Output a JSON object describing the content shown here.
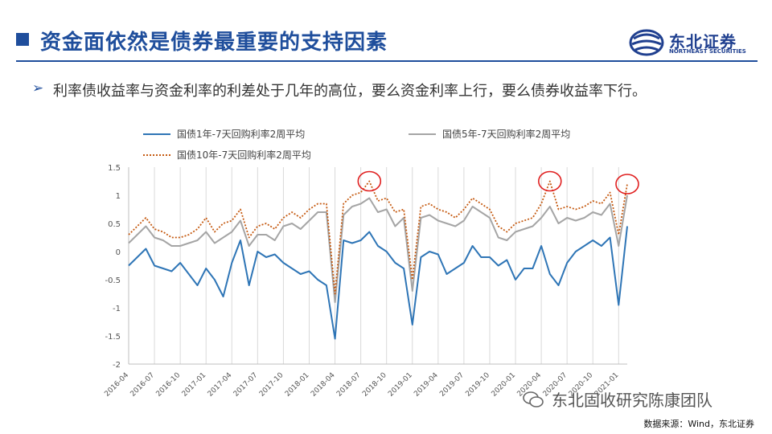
{
  "header": {
    "title": "资金面依然是债券最重要的支持因素",
    "logo_cn": "东北证券",
    "logo_en": "NORTHEAST SECURITIES"
  },
  "bullet": {
    "text": "利率债收益率与资金利率的利差处于几年的高位，要么资金利率上行，要么债券收益率下行。"
  },
  "watermark": "东北固收研究陈康团队",
  "source": "数据来源：Wind，东北证券",
  "colors": {
    "title": "#1f4e9c",
    "series1": "#2e75b6",
    "series2": "#a5a5a5",
    "series3": "#c55a11",
    "highlight": "#e02020"
  },
  "chart_data": {
    "type": "line",
    "x": [
      "2016-04",
      "2016-05",
      "2016-06",
      "2016-07",
      "2016-08",
      "2016-09",
      "2016-10",
      "2016-11",
      "2016-12",
      "2017-01",
      "2017-02",
      "2017-03",
      "2017-04",
      "2017-05",
      "2017-06",
      "2017-07",
      "2017-08",
      "2017-09",
      "2017-10",
      "2017-11",
      "2017-12",
      "2018-01",
      "2018-02",
      "2018-03",
      "2018-04",
      "2018-05",
      "2018-06",
      "2018-07",
      "2018-08",
      "2018-09",
      "2018-10",
      "2018-11",
      "2018-12",
      "2019-01",
      "2019-02",
      "2019-03",
      "2019-04",
      "2019-05",
      "2019-06",
      "2019-07",
      "2019-08",
      "2019-09",
      "2019-10",
      "2019-11",
      "2019-12",
      "2020-01",
      "2020-02",
      "2020-03",
      "2020-04",
      "2020-05",
      "2020-06",
      "2020-07",
      "2020-08",
      "2020-09",
      "2020-10",
      "2020-11",
      "2020-12",
      "2021-01",
      "2021-02"
    ],
    "x_tick_labels": [
      "2016-04",
      "2016-07",
      "2016-10",
      "2017-01",
      "2017-04",
      "2017-07",
      "2017-10",
      "2018-01",
      "2018-04",
      "2018-07",
      "2018-10",
      "2019-01",
      "2019-04",
      "2019-07",
      "2019-10",
      "2020-01",
      "2020-04",
      "2020-07",
      "2020-10",
      "2021-01"
    ],
    "series": [
      {
        "name": "国债1年-7天回购利率2周平均",
        "values": [
          -0.25,
          -0.1,
          0.05,
          -0.25,
          -0.3,
          -0.35,
          -0.2,
          -0.4,
          -0.6,
          -0.3,
          -0.5,
          -0.8,
          -0.2,
          0.2,
          -0.6,
          0.0,
          -0.1,
          -0.05,
          -0.2,
          -0.3,
          -0.4,
          -0.35,
          -0.5,
          -0.6,
          -1.55,
          0.2,
          0.15,
          0.2,
          0.35,
          0.1,
          0.0,
          -0.2,
          -0.3,
          -1.3,
          -0.1,
          0.0,
          -0.05,
          -0.4,
          -0.3,
          -0.2,
          0.1,
          -0.1,
          -0.1,
          -0.25,
          -0.15,
          -0.5,
          -0.3,
          -0.3,
          0.1,
          -0.4,
          -0.6,
          -0.2,
          0.0,
          0.1,
          0.2,
          0.1,
          0.25,
          -0.95,
          0.45
        ]
      },
      {
        "name": "国债5年-7天回购利率2周平均",
        "values": [
          0.15,
          0.3,
          0.45,
          0.25,
          0.2,
          0.1,
          0.1,
          0.15,
          0.2,
          0.35,
          0.15,
          0.25,
          0.35,
          0.55,
          0.1,
          0.3,
          0.3,
          0.2,
          0.45,
          0.5,
          0.4,
          0.55,
          0.7,
          0.7,
          -0.9,
          0.65,
          0.8,
          0.85,
          0.95,
          0.7,
          0.75,
          0.45,
          0.6,
          -0.7,
          0.6,
          0.65,
          0.55,
          0.5,
          0.45,
          0.55,
          0.8,
          0.7,
          0.6,
          0.25,
          0.2,
          0.35,
          0.4,
          0.45,
          0.6,
          0.8,
          0.5,
          0.6,
          0.55,
          0.6,
          0.7,
          0.65,
          0.85,
          0.1,
          1.0
        ]
      },
      {
        "name": "国债10年-7天回购利率2周平均",
        "values": [
          0.3,
          0.45,
          0.6,
          0.4,
          0.35,
          0.25,
          0.25,
          0.3,
          0.4,
          0.6,
          0.35,
          0.5,
          0.55,
          0.75,
          0.25,
          0.45,
          0.5,
          0.4,
          0.6,
          0.7,
          0.6,
          0.75,
          0.85,
          0.85,
          -0.75,
          0.85,
          1.0,
          1.05,
          1.25,
          0.9,
          0.95,
          0.7,
          0.75,
          -0.5,
          0.8,
          0.85,
          0.75,
          0.7,
          0.6,
          0.75,
          0.95,
          0.85,
          0.75,
          0.45,
          0.35,
          0.5,
          0.55,
          0.6,
          0.85,
          1.25,
          0.75,
          0.8,
          0.75,
          0.8,
          0.9,
          0.85,
          1.05,
          0.3,
          1.2
        ]
      }
    ],
    "ylim": [
      -2,
      1.5
    ],
    "y_ticks": [
      1.5,
      1,
      0.5,
      0,
      -0.5,
      -1,
      -1.5,
      -2
    ],
    "grid": "vertical",
    "legend": "top",
    "highlights": [
      "2018-08",
      "2020-05",
      "2021-02"
    ]
  }
}
